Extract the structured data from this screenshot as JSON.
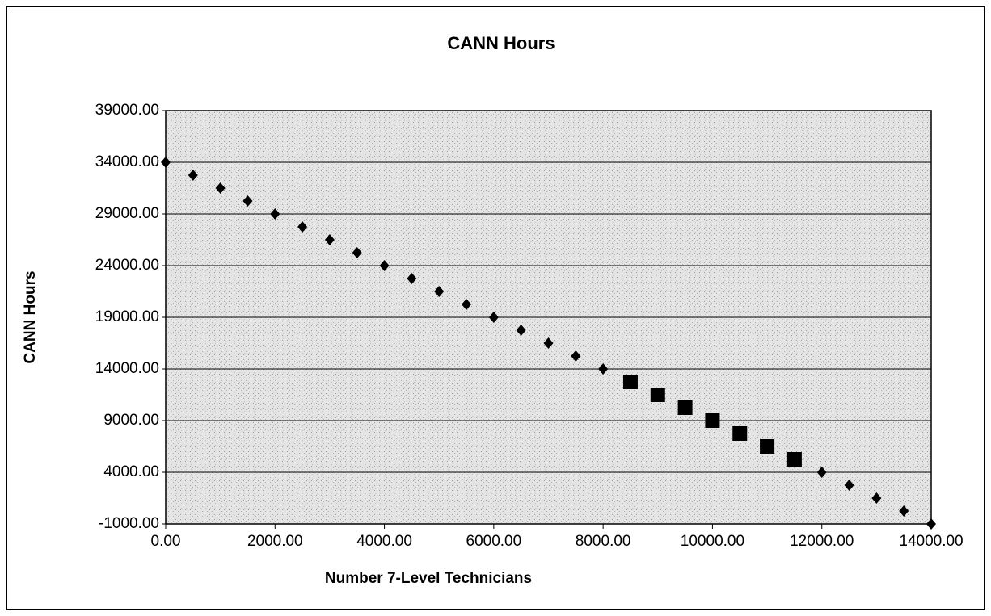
{
  "chart_data": {
    "type": "scatter",
    "title": "CANN Hours",
    "xlabel": "Number 7-Level Technicians",
    "ylabel": "CANN Hours",
    "xlim": [
      0,
      14000
    ],
    "ylim": [
      -1000,
      39000
    ],
    "xticks": [
      {
        "value": 0,
        "label": "0.00"
      },
      {
        "value": 2000,
        "label": "2000.00"
      },
      {
        "value": 4000,
        "label": "4000.00"
      },
      {
        "value": 6000,
        "label": "6000.00"
      },
      {
        "value": 8000,
        "label": "8000.00"
      },
      {
        "value": 10000,
        "label": "10000.00"
      },
      {
        "value": 12000,
        "label": "12000.00"
      },
      {
        "value": 14000,
        "label": "14000.00"
      }
    ],
    "yticks": [
      {
        "value": -1000,
        "label": "-1000.00"
      },
      {
        "value": 4000,
        "label": "4000.00"
      },
      {
        "value": 9000,
        "label": "9000.00"
      },
      {
        "value": 14000,
        "label": "14000.00"
      },
      {
        "value": 19000,
        "label": "19000.00"
      },
      {
        "value": 24000,
        "label": "24000.00"
      },
      {
        "value": 29000,
        "label": "29000.00"
      },
      {
        "value": 34000,
        "label": "34000.00"
      },
      {
        "value": 39000,
        "label": "39000.00"
      }
    ],
    "grid": true,
    "series": [
      {
        "color": "#000000",
        "marker": "diamond",
        "x": [
          0,
          500,
          1000,
          1500,
          2000,
          2500,
          3000,
          3500,
          4000,
          4500,
          5000,
          5500,
          6000,
          6500,
          7000,
          7500,
          8000,
          12000,
          12500,
          13000,
          13500,
          14000
        ],
        "values": [
          34000,
          32750,
          31500,
          30250,
          29000,
          27750,
          26500,
          25250,
          24000,
          22750,
          21500,
          20250,
          19000,
          17750,
          16500,
          15250,
          14000,
          4000,
          2750,
          1500,
          250,
          -1000
        ]
      },
      {
        "color": "#000000",
        "marker": "square",
        "x": [
          8500,
          9000,
          9500,
          10000,
          10500,
          11000,
          11500
        ],
        "values": [
          12750,
          11500,
          10250,
          9000,
          7750,
          6500,
          5250
        ]
      }
    ]
  }
}
